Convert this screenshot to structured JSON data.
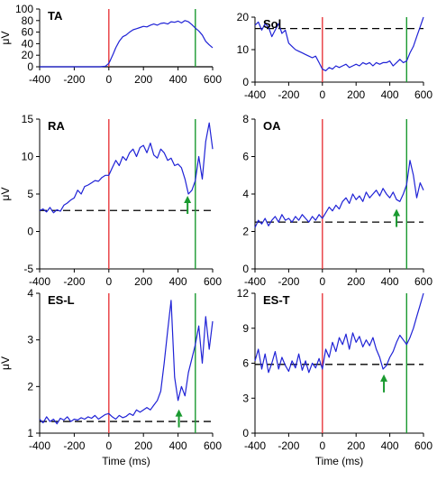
{
  "chart_data": [
    {
      "type": "line",
      "title": "TA",
      "ylabel": "μV",
      "xlabel": "",
      "xlim": [
        -400,
        600
      ],
      "ylim": [
        0,
        100
      ],
      "xticks": [
        -400,
        -200,
        0,
        200,
        400,
        600
      ],
      "yticks": [
        0,
        20,
        40,
        60,
        80,
        100
      ],
      "baseline": 0,
      "baseline_style": "solid",
      "onset_x": 0,
      "onset_color": "#e8383d",
      "end_x": 500,
      "end_color": "#1a9a30",
      "arrow_x": null,
      "arrow_y": null,
      "series": [
        {
          "color": "#1f22d6",
          "x": [
            -400,
            -300,
            -200,
            -100,
            -50,
            -20,
            0,
            10,
            25,
            40,
            60,
            80,
            100,
            120,
            140,
            160,
            180,
            200,
            220,
            240,
            260,
            280,
            300,
            320,
            340,
            360,
            380,
            400,
            420,
            440,
            460,
            480,
            500,
            520,
            540,
            560,
            580,
            600
          ],
          "y": [
            0,
            0,
            0,
            0,
            0,
            1,
            6,
            12,
            22,
            33,
            44,
            52,
            55,
            60,
            64,
            66,
            68,
            70,
            69,
            72,
            74,
            72,
            75,
            76,
            74,
            78,
            77,
            79,
            76,
            80,
            78,
            73,
            67,
            62,
            55,
            44,
            38,
            33
          ]
        }
      ]
    },
    {
      "type": "line",
      "title": "Sol",
      "ylabel": "",
      "xlabel": "",
      "xlim": [
        -400,
        600
      ],
      "ylim": [
        0,
        20
      ],
      "xticks": [
        -400,
        -200,
        0,
        200,
        400,
        600
      ],
      "yticks": [
        0,
        10,
        20
      ],
      "baseline": 16.5,
      "baseline_style": "dashed",
      "onset_x": 0,
      "onset_color": "#e8383d",
      "end_x": 500,
      "end_color": "#1a9a30",
      "arrow_x": null,
      "arrow_y": null,
      "series": [
        {
          "color": "#1f22d6",
          "x": [
            -400,
            -380,
            -360,
            -340,
            -320,
            -300,
            -280,
            -260,
            -240,
            -220,
            -200,
            -180,
            -160,
            -140,
            -120,
            -100,
            -80,
            -60,
            -40,
            -20,
            0,
            20,
            40,
            60,
            80,
            100,
            120,
            140,
            160,
            180,
            200,
            220,
            240,
            260,
            280,
            300,
            320,
            340,
            360,
            380,
            400,
            420,
            440,
            460,
            480,
            500,
            520,
            540,
            560,
            580,
            600
          ],
          "y": [
            17.5,
            18.5,
            16,
            18,
            17,
            14,
            16,
            18,
            15,
            16,
            12,
            11,
            10,
            9.5,
            9,
            8.5,
            8,
            7.5,
            8,
            6,
            4,
            3.5,
            4.5,
            4,
            5,
            4.5,
            5,
            5.5,
            4.5,
            5,
            5.5,
            5,
            6,
            5.5,
            6,
            5,
            6,
            5.5,
            6,
            6,
            6.5,
            5,
            6,
            7,
            6,
            6.5,
            9,
            11,
            14,
            17,
            20
          ]
        }
      ]
    },
    {
      "type": "line",
      "title": "RA",
      "ylabel": "μV",
      "xlabel": "",
      "xlim": [
        -400,
        600
      ],
      "ylim": [
        -5,
        15
      ],
      "xticks": [
        -400,
        -200,
        0,
        200,
        400,
        600
      ],
      "yticks": [
        -5,
        0,
        5,
        10,
        15
      ],
      "baseline": 2.8,
      "baseline_style": "dashed",
      "onset_x": 0,
      "onset_color": "#e8383d",
      "end_x": 500,
      "end_color": "#1a9a30",
      "arrow_x": 455,
      "arrow_y": 5,
      "series": [
        {
          "color": "#1f22d6",
          "x": [
            -400,
            -380,
            -360,
            -340,
            -320,
            -300,
            -280,
            -260,
            -240,
            -220,
            -200,
            -180,
            -160,
            -140,
            -120,
            -100,
            -80,
            -60,
            -40,
            -20,
            0,
            20,
            40,
            60,
            80,
            100,
            120,
            140,
            160,
            180,
            200,
            220,
            240,
            260,
            280,
            300,
            320,
            340,
            360,
            380,
            400,
            420,
            440,
            460,
            480,
            500,
            520,
            540,
            560,
            580,
            600
          ],
          "y": [
            2.8,
            3,
            2.6,
            3.2,
            2.5,
            2.9,
            2.7,
            3.5,
            3.8,
            4.2,
            4.5,
            5.5,
            5,
            6,
            6.2,
            6.5,
            6.8,
            6.7,
            7.2,
            7.5,
            7.5,
            8.5,
            9.5,
            8.8,
            10,
            9.5,
            10.5,
            11,
            10,
            11.2,
            11.5,
            10.5,
            11.8,
            10.2,
            9.8,
            11,
            10.5,
            9.5,
            9.8,
            8.8,
            9,
            8.5,
            7,
            5,
            5.5,
            6.8,
            10,
            7,
            12,
            14.5,
            11
          ]
        }
      ]
    },
    {
      "type": "line",
      "title": "OA",
      "ylabel": "",
      "xlabel": "",
      "xlim": [
        -400,
        600
      ],
      "ylim": [
        0,
        8
      ],
      "xticks": [
        -400,
        -200,
        0,
        200,
        400,
        600
      ],
      "yticks": [
        0,
        2,
        4,
        6,
        8
      ],
      "baseline": 2.5,
      "baseline_style": "dashed",
      "onset_x": 0,
      "onset_color": "#e8383d",
      "end_x": 500,
      "end_color": "#1a9a30",
      "arrow_x": 440,
      "arrow_y": 3.3,
      "series": [
        {
          "color": "#1f22d6",
          "x": [
            -400,
            -380,
            -360,
            -340,
            -320,
            -300,
            -280,
            -260,
            -240,
            -220,
            -200,
            -180,
            -160,
            -140,
            -120,
            -100,
            -80,
            -60,
            -40,
            -20,
            0,
            20,
            40,
            60,
            80,
            100,
            120,
            140,
            160,
            180,
            200,
            220,
            240,
            260,
            280,
            300,
            320,
            340,
            360,
            380,
            400,
            420,
            440,
            460,
            480,
            500,
            520,
            540,
            560,
            580,
            600
          ],
          "y": [
            2.2,
            2.6,
            2.4,
            2.7,
            2.3,
            2.6,
            2.8,
            2.5,
            2.9,
            2.6,
            2.7,
            2.5,
            2.8,
            2.6,
            2.9,
            2.7,
            2.5,
            2.8,
            2.6,
            2.9,
            2.7,
            3,
            3.3,
            3.1,
            3.4,
            3.2,
            3.6,
            3.8,
            3.5,
            4,
            3.7,
            3.9,
            3.6,
            4.1,
            3.8,
            4,
            4.2,
            3.9,
            4.3,
            4,
            3.8,
            4.1,
            3.7,
            3.6,
            4,
            4.5,
            5.8,
            5,
            3.8,
            4.6,
            4.2
          ]
        }
      ]
    },
    {
      "type": "line",
      "title": "ES-L",
      "ylabel": "μV",
      "xlabel": "Time (ms)",
      "xlim": [
        -400,
        600
      ],
      "ylim": [
        1,
        4
      ],
      "xticks": [
        -400,
        -200,
        0,
        200,
        400,
        600
      ],
      "yticks": [
        1,
        2,
        3,
        4
      ],
      "baseline": 1.25,
      "baseline_style": "dashed",
      "onset_x": 0,
      "onset_color": "#e8383d",
      "end_x": 500,
      "end_color": "#1a9a30",
      "arrow_x": 405,
      "arrow_y": 1.55,
      "series": [
        {
          "color": "#1f22d6",
          "x": [
            -400,
            -380,
            -360,
            -340,
            -320,
            -300,
            -280,
            -260,
            -240,
            -220,
            -200,
            -180,
            -160,
            -140,
            -120,
            -100,
            -80,
            -60,
            -40,
            -20,
            0,
            20,
            40,
            60,
            80,
            100,
            120,
            140,
            160,
            180,
            200,
            220,
            240,
            260,
            280,
            300,
            320,
            340,
            360,
            380,
            400,
            420,
            440,
            460,
            480,
            500,
            520,
            540,
            560,
            580,
            600
          ],
          "y": [
            1.3,
            1.22,
            1.35,
            1.25,
            1.3,
            1.2,
            1.32,
            1.28,
            1.35,
            1.25,
            1.3,
            1.28,
            1.33,
            1.3,
            1.35,
            1.32,
            1.38,
            1.3,
            1.35,
            1.4,
            1.42,
            1.35,
            1.3,
            1.38,
            1.33,
            1.36,
            1.42,
            1.38,
            1.5,
            1.45,
            1.5,
            1.55,
            1.5,
            1.6,
            1.7,
            1.9,
            2.5,
            3.2,
            3.85,
            2.2,
            1.7,
            2,
            1.8,
            2.3,
            2.6,
            2.9,
            3.3,
            2.5,
            3.5,
            2.8,
            3.4
          ]
        }
      ]
    },
    {
      "type": "line",
      "title": "ES-T",
      "ylabel": "",
      "xlabel": "Time (ms)",
      "xlim": [
        -400,
        600
      ],
      "ylim": [
        0,
        12
      ],
      "xticks": [
        -400,
        -200,
        0,
        200,
        400,
        600
      ],
      "yticks": [
        0,
        3,
        6,
        9,
        12
      ],
      "baseline": 5.9,
      "baseline_style": "dashed",
      "onset_x": 0,
      "onset_color": "#e8383d",
      "end_x": 500,
      "end_color": "#1a9a30",
      "arrow_x": 365,
      "arrow_y": 5.2,
      "series": [
        {
          "color": "#1f22d6",
          "x": [
            -400,
            -380,
            -360,
            -340,
            -320,
            -300,
            -280,
            -260,
            -240,
            -220,
            -200,
            -180,
            -160,
            -140,
            -120,
            -100,
            -80,
            -60,
            -40,
            -20,
            0,
            20,
            40,
            60,
            80,
            100,
            120,
            140,
            160,
            180,
            200,
            220,
            240,
            260,
            280,
            300,
            320,
            340,
            360,
            380,
            400,
            420,
            440,
            460,
            480,
            500,
            520,
            540,
            560,
            580,
            600
          ],
          "y": [
            6.2,
            7.2,
            5.5,
            6.8,
            5.2,
            6,
            7,
            5.5,
            6.5,
            5.8,
            5.3,
            6.2,
            5.6,
            6.8,
            5.4,
            6.2,
            5.2,
            6,
            5.6,
            6.4,
            5.5,
            7.2,
            6.5,
            7.8,
            7,
            8.2,
            7.6,
            8.5,
            7.2,
            8.6,
            7.8,
            8.3,
            7.4,
            8,
            7.5,
            8.2,
            7.2,
            6.5,
            5.5,
            5.8,
            6.5,
            7,
            7.8,
            8.4,
            8,
            7.6,
            8.2,
            9,
            10,
            11,
            12
          ]
        }
      ]
    }
  ]
}
